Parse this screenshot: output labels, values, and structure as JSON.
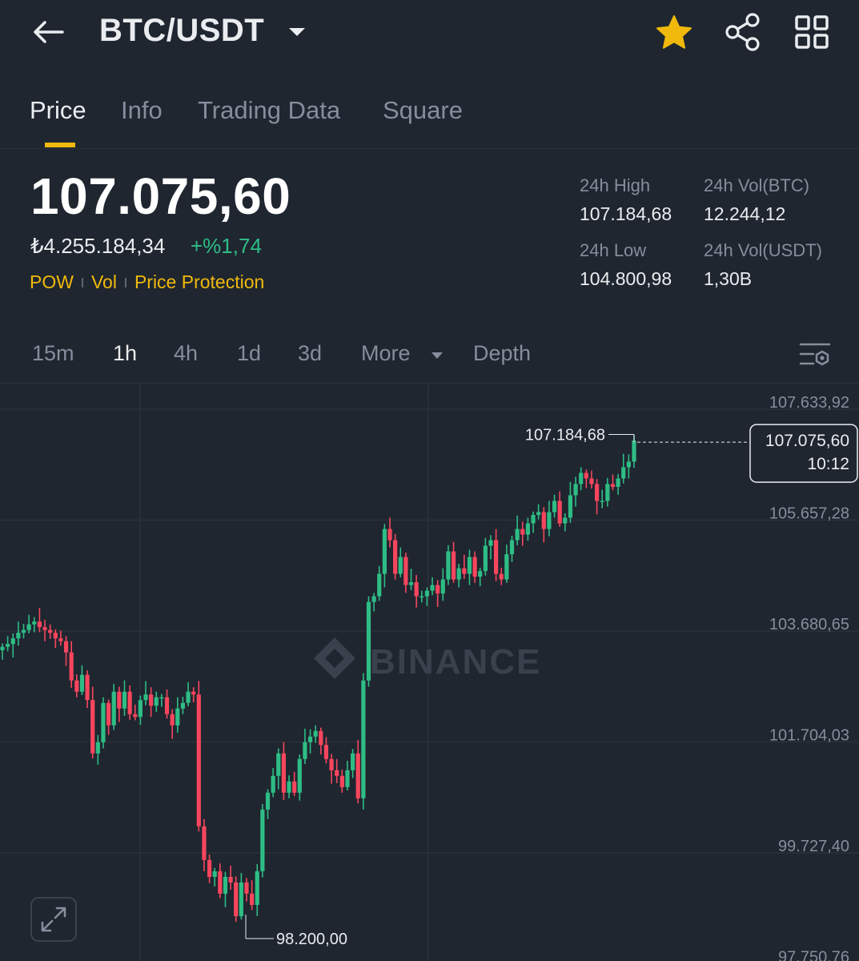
{
  "header": {
    "pair": "BTC/USDT",
    "icons": {
      "back": "arrow-left-icon",
      "caret": "caret-down-icon",
      "favorite": "star-icon",
      "share": "share-icon",
      "menu": "grid-icon"
    },
    "favorite_color": "#f0b90b"
  },
  "tabs": [
    {
      "label": "Price",
      "active": true
    },
    {
      "label": "Info"
    },
    {
      "label": "Trading Data"
    },
    {
      "label": "Square"
    }
  ],
  "ticker": {
    "last_price": "107.075,60",
    "local_price": "₺4.255.184,34",
    "change": "+%1,74",
    "tags": [
      "POW",
      "Vol",
      "Price Protection"
    ],
    "stats": {
      "high_label": "24h High",
      "high_value": "107.184,68",
      "vol_btc_label": "24h Vol(BTC)",
      "vol_btc_value": "12.244,12",
      "low_label": "24h Low",
      "low_value": "104.800,98",
      "vol_usdt_label": "24h Vol(USDT)",
      "vol_usdt_value": "1,30B"
    }
  },
  "intervals": {
    "items": [
      "15m",
      "1h",
      "4h",
      "1d",
      "3d"
    ],
    "active": "1h",
    "more_label": "More",
    "depth_label": "Depth"
  },
  "chart": {
    "watermark": "BINANCE",
    "y_ticks": [
      "107.633,92",
      "105.657,28",
      "103.680,65",
      "101.704,03",
      "99.727,40",
      "97.750,76"
    ],
    "high_marker": "107.184,68",
    "low_marker": "98.200,00",
    "last_price_label": "107.075,60",
    "countdown": "10:12",
    "up_color": "#2ebd85",
    "down_color": "#f6465d"
  },
  "chart_data": {
    "type": "candlestick",
    "interval": "1h",
    "y_ticks": [
      107633.92,
      105657.28,
      103680.65,
      101704.03,
      99727.4,
      97750.76
    ],
    "ylim": [
      97750.76,
      107633.92
    ],
    "high": 107184.68,
    "low": 98200.0,
    "last": 107075.6,
    "closes": [
      103400,
      103450,
      103550,
      103650,
      103700,
      103800,
      103850,
      103750,
      103700,
      103650,
      103550,
      103500,
      103300,
      102800,
      102600,
      102900,
      102450,
      101500,
      101700,
      102400,
      102000,
      102600,
      102300,
      102600,
      102200,
      102150,
      102450,
      102550,
      102350,
      102500,
      102500,
      102200,
      102000,
      102300,
      102400,
      102600,
      102550,
      100200,
      99600,
      99300,
      99400,
      99000,
      99300,
      99200,
      98600,
      99200,
      99000,
      98800,
      99400,
      100500,
      100800,
      101100,
      101500,
      100800,
      101000,
      100800,
      101400,
      101700,
      101800,
      101900,
      101650,
      101400,
      101200,
      101100,
      100900,
      101200,
      101500,
      100700,
      102800,
      104200,
      104300,
      104700,
      105500,
      105300,
      104700,
      105000,
      104500,
      104550,
      104300,
      104300,
      104400,
      104500,
      104350,
      104600,
      105100,
      104600,
      104800,
      104700,
      105000,
      104650,
      104750,
      105200,
      105300,
      104700,
      104600,
      105050,
      105300,
      105500,
      105400,
      105600,
      105750,
      105800,
      105500,
      105800,
      106000,
      105600,
      105700,
      106100,
      106300,
      106500,
      106400,
      106300,
      106000,
      106000,
      106300,
      106250,
      106400,
      106600,
      106700,
      107075.6
    ]
  }
}
